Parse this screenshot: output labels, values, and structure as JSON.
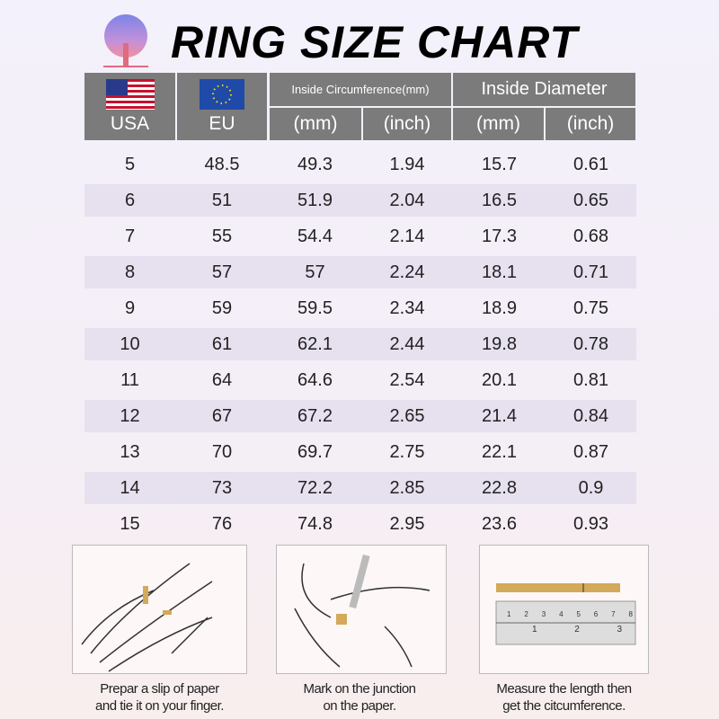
{
  "title": "RING SIZE CHART",
  "logo_icon": "tree-logo",
  "colors": {
    "header": "#7b7b7b",
    "stripe": "#e6e0ef",
    "paper_strip": "#d4a95a"
  },
  "headers": {
    "usa": "USA",
    "eu": "EU",
    "circumference": "Inside Circumference(mm)",
    "diameter": "Inside Diameter",
    "circ_mm": "(mm)",
    "circ_inch": "(inch)",
    "diam_mm": "(mm)",
    "diam_inch": "(inch)"
  },
  "rows": [
    [
      "5",
      "48.5",
      "49.3",
      "1.94",
      "15.7",
      "0.61"
    ],
    [
      "6",
      "51",
      "51.9",
      "2.04",
      "16.5",
      "0.65"
    ],
    [
      "7",
      "55",
      "54.4",
      "2.14",
      "17.3",
      "0.68"
    ],
    [
      "8",
      "57",
      "57",
      "2.24",
      "18.1",
      "0.71"
    ],
    [
      "9",
      "59",
      "59.5",
      "2.34",
      "18.9",
      "0.75"
    ],
    [
      "10",
      "61",
      "62.1",
      "2.44",
      "19.8",
      "0.78"
    ],
    [
      "11",
      "64",
      "64.6",
      "2.54",
      "20.1",
      "0.81"
    ],
    [
      "12",
      "67",
      "67.2",
      "2.65",
      "21.4",
      "0.84"
    ],
    [
      "13",
      "70",
      "69.7",
      "2.75",
      "22.1",
      "0.87"
    ],
    [
      "14",
      "73",
      "72.2",
      "2.85",
      "22.8",
      "0.9"
    ],
    [
      "15",
      "76",
      "74.8",
      "2.95",
      "23.6",
      "0.93"
    ]
  ],
  "steps": [
    {
      "line1": "Prepar a slip of paper",
      "line2": "and tie it on your finger."
    },
    {
      "line1": "Mark on the junction",
      "line2": "on the paper."
    },
    {
      "line1": "Measure  the length then",
      "line2": "get the citcumference."
    }
  ],
  "ruler": {
    "cm_ticks": [
      "1",
      "2",
      "3",
      "4",
      "5",
      "6",
      "7",
      "8"
    ],
    "inch_ticks": [
      "1",
      "2",
      "3"
    ]
  }
}
